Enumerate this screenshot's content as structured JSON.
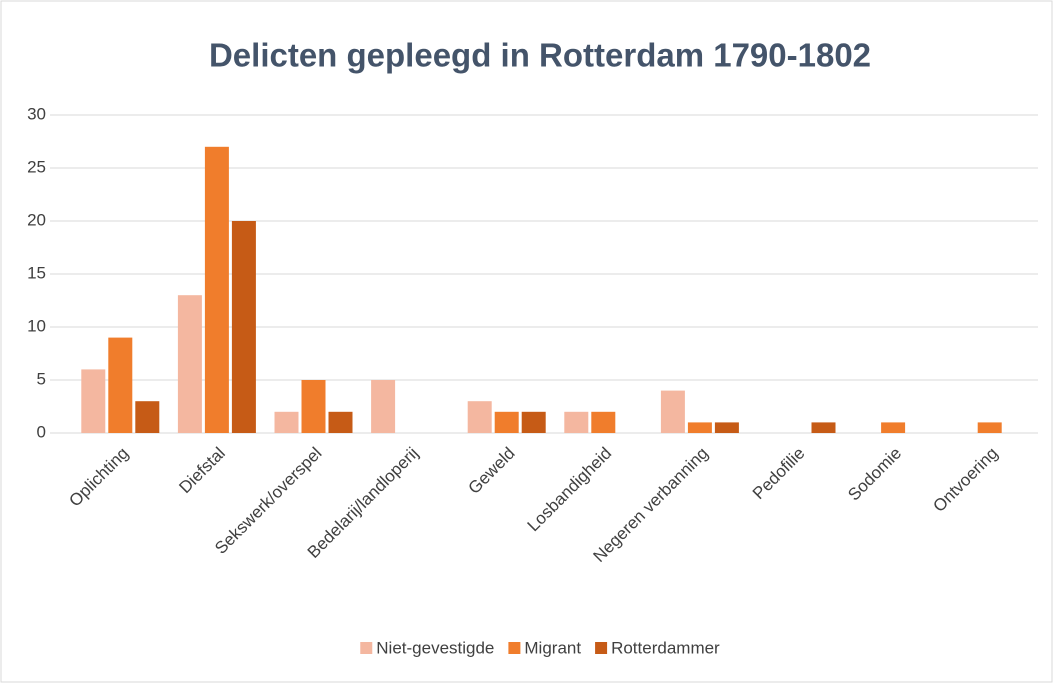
{
  "chart_data": {
    "type": "bar",
    "title": "Delicten gepleegd in Rotterdam 1790-1802",
    "categories": [
      "Oplichting",
      "Diefstal",
      "Sekswerk/overspel",
      "Bedelarij/landloperij",
      "Geweld",
      "Losbandigheid",
      "Negeren verbanning",
      "Pedofilie",
      "Sodomie",
      "Ontvoering"
    ],
    "series": [
      {
        "name": "Niet-gevestigde",
        "color": "#f4b7a0",
        "values": [
          6,
          13,
          2,
          5,
          3,
          2,
          4,
          0,
          0,
          0
        ]
      },
      {
        "name": "Migrant",
        "color": "#f07d2c",
        "values": [
          9,
          27,
          5,
          0,
          2,
          2,
          1,
          0,
          1,
          1
        ]
      },
      {
        "name": "Rotterdammer",
        "color": "#c65b16",
        "values": [
          3,
          20,
          2,
          0,
          2,
          0,
          1,
          1,
          0,
          0
        ]
      }
    ],
    "ylim": [
      0,
      30
    ],
    "yticks": [
      0,
      5,
      10,
      15,
      20,
      25,
      30
    ],
    "grid": true,
    "legend": "bottom"
  }
}
